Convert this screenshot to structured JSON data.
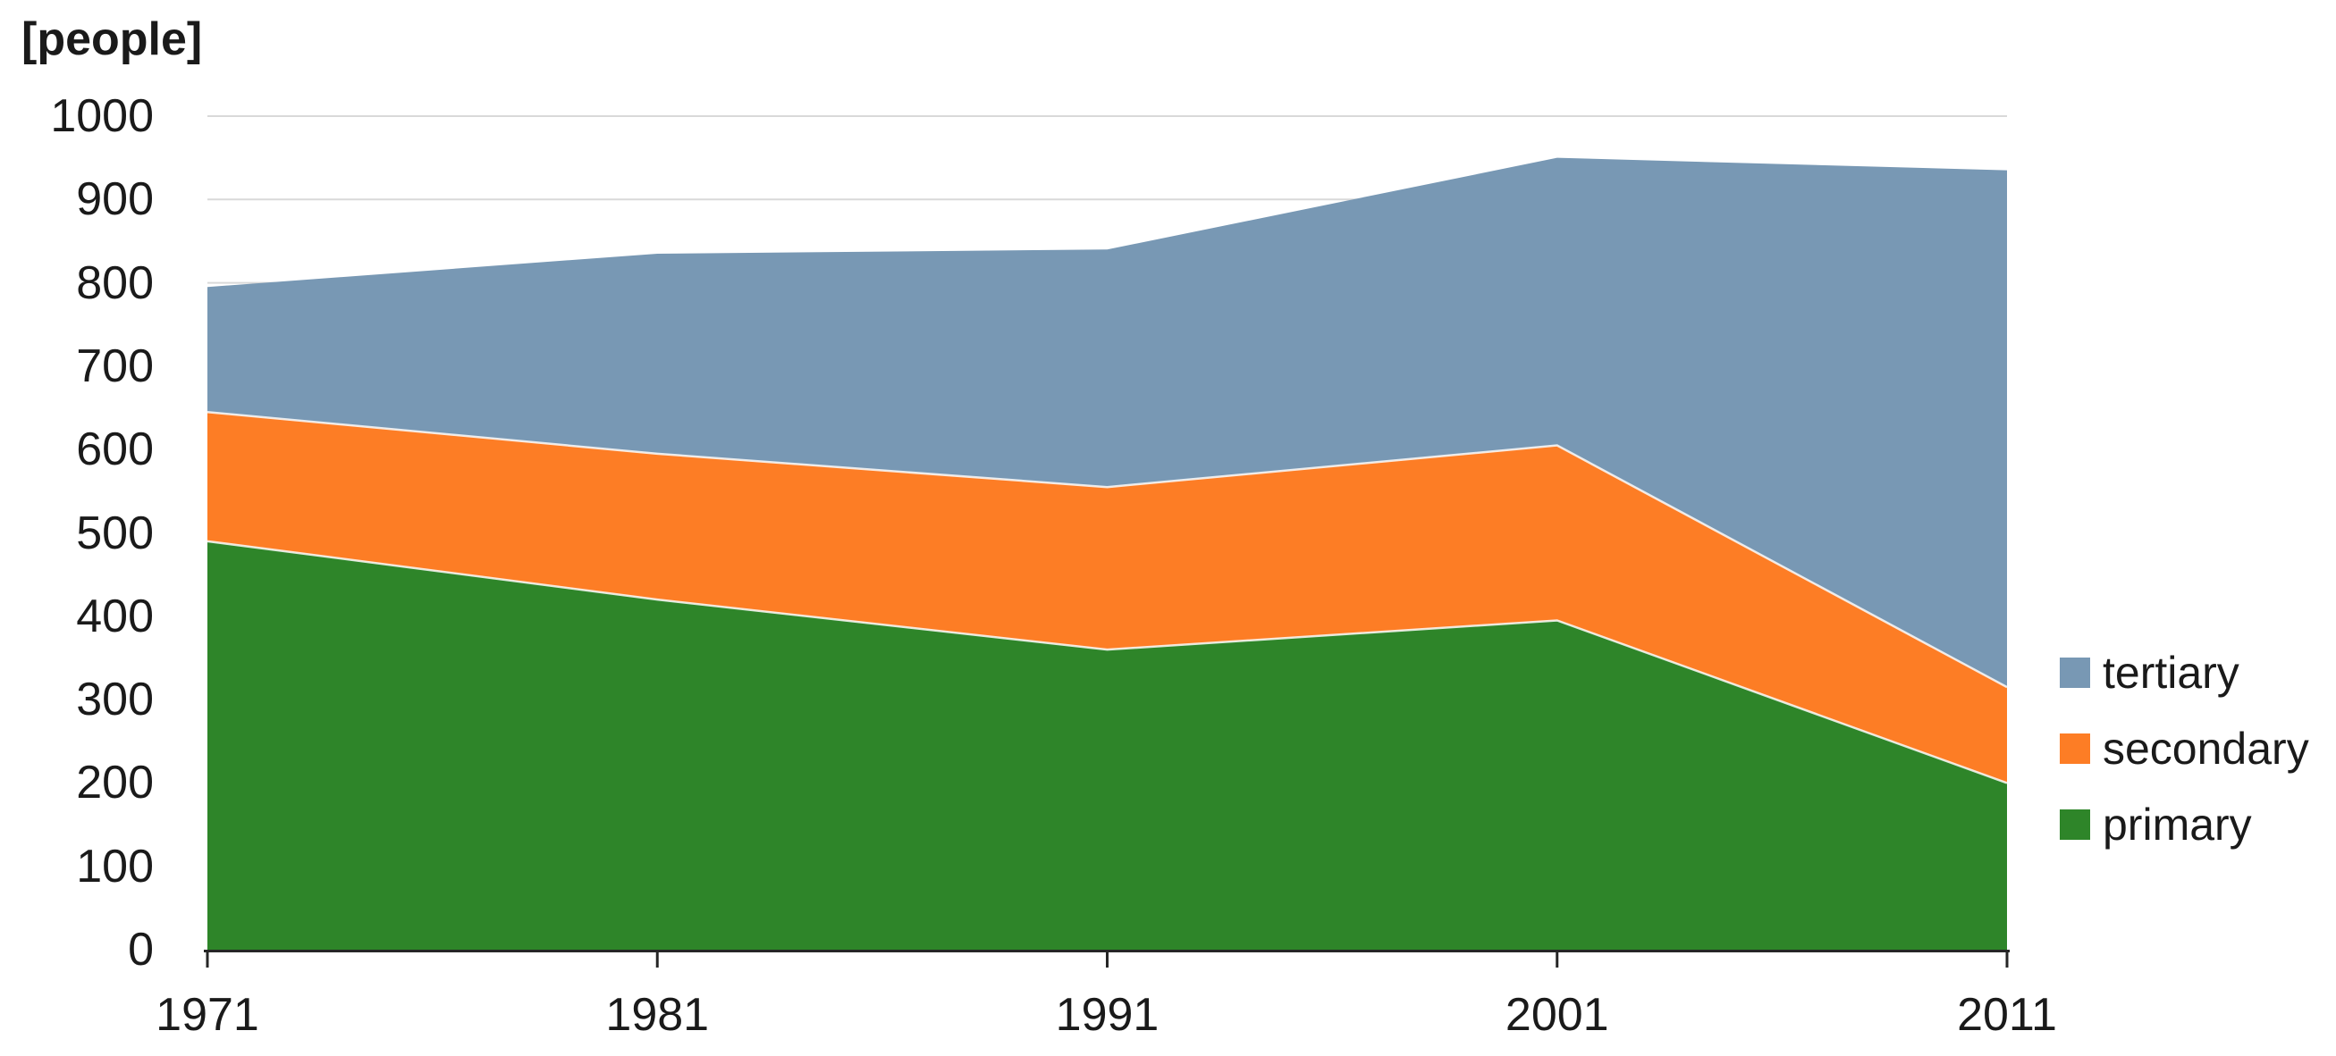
{
  "chart_data": {
    "type": "area",
    "stacked": true,
    "unit_label": "[people]",
    "x": [
      1971,
      1981,
      1991,
      2001,
      2011
    ],
    "x_tick_labels": [
      "1971",
      "1981",
      "1991",
      "2001",
      "2011"
    ],
    "series": [
      {
        "name": "primary",
        "color": "#2e8529",
        "values": [
          490,
          420,
          360,
          395,
          200
        ]
      },
      {
        "name": "secondary",
        "color": "#fd7d25",
        "values": [
          155,
          175,
          195,
          210,
          115
        ]
      },
      {
        "name": "tertiary",
        "color": "#7898b4",
        "values": [
          150,
          240,
          285,
          345,
          620
        ]
      }
    ],
    "cumulative_tops": {
      "primary": [
        490,
        420,
        360,
        395,
        200
      ],
      "secondary": [
        645,
        595,
        555,
        605,
        315
      ],
      "tertiary": [
        795,
        835,
        840,
        950,
        935
      ]
    },
    "ylim": [
      0,
      1000
    ],
    "y_ticks": [
      0,
      100,
      200,
      300,
      400,
      500,
      600,
      700,
      800,
      900,
      1000
    ],
    "grid": "horizontal",
    "gridline_color": "#d9d9d9",
    "axis_color": "#262626",
    "legend": {
      "position": "right",
      "entries": [
        {
          "label": "tertiary",
          "color": "#7898b4"
        },
        {
          "label": "secondary",
          "color": "#fd7d25"
        },
        {
          "label": "primary",
          "color": "#2e8529"
        }
      ]
    }
  }
}
